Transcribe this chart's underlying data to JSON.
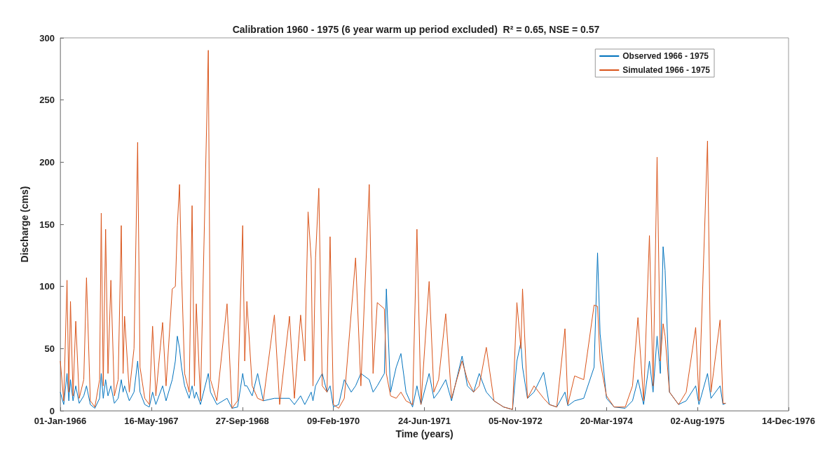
{
  "chart_data": {
    "type": "line",
    "title": "Calibration 1960 - 1975 (6 year warm up period excluded)  R² = 0.65, NSE = 0.57",
    "xlabel": "Time (years)",
    "ylabel": "Discharge (cms)",
    "x": [
      "1966-01-01",
      "1966-01-20",
      "1966-02-07",
      "1966-02-17",
      "1966-02-26",
      "1966-03-12",
      "1966-03-27",
      "1966-04-15",
      "1966-05-10",
      "1966-05-25",
      "1966-06-15",
      "1966-07-10",
      "1966-08-05",
      "1966-08-14",
      "1966-08-25",
      "1966-09-07",
      "1966-09-20",
      "1966-10-06",
      "1966-10-25",
      "1966-11-15",
      "1966-12-02",
      "1966-12-12",
      "1966-12-20",
      "1967-01-15",
      "1967-02-10",
      "1967-03-02",
      "1967-03-15",
      "1967-04-10",
      "1967-05-05",
      "1967-05-23",
      "1967-06-10",
      "1967-07-17",
      "1967-08-05",
      "1967-09-08",
      "1967-09-25",
      "1967-10-06",
      "1967-10-18",
      "1967-10-29",
      "1967-11-15",
      "1967-12-10",
      "1967-12-26",
      "1968-01-08",
      "1968-01-18",
      "1968-02-10",
      "1968-03-24",
      "1968-04-05",
      "1968-05-10",
      "1968-07-05",
      "1968-08-01",
      "1968-09-01",
      "1968-09-29",
      "1968-10-10",
      "1968-10-22",
      "1968-11-20",
      "1968-12-20",
      "1969-01-20",
      "1969-03-22",
      "1969-04-20",
      "1969-06-13",
      "1969-07-10",
      "1969-08-13",
      "1969-09-05",
      "1969-09-23",
      "1969-10-10",
      "1969-10-20",
      "1969-11-03",
      "1969-11-21",
      "1969-12-10",
      "1970-01-05",
      "1970-01-22",
      "1970-02-09",
      "1970-03-10",
      "1970-04-10",
      "1970-05-18",
      "1970-06-11",
      "1970-07-10",
      "1970-08-25",
      "1970-09-15",
      "1970-10-08",
      "1970-11-16",
      "1970-11-27",
      "1970-12-20",
      "1971-01-20",
      "1971-02-15",
      "1971-03-15",
      "1971-04-20",
      "1971-05-14",
      "1971-06-05",
      "1971-07-20",
      "1971-08-15",
      "1971-09-10",
      "1971-10-19",
      "1971-11-20",
      "1972-01-17",
      "1972-02-15",
      "1972-03-20",
      "1972-04-20",
      "1972-05-29",
      "1972-07-10",
      "1972-09-01",
      "1972-10-20",
      "1972-11-13",
      "1972-12-05",
      "1972-12-14",
      "1973-01-10",
      "1973-02-15",
      "1973-04-09",
      "1973-05-10",
      "1973-06-20",
      "1973-08-04",
      "1973-08-20",
      "1973-09-26",
      "1973-11-15",
      "1974-01-11",
      "1974-01-30",
      "1974-02-13",
      "1974-03-20",
      "1974-05-01",
      "1974-07-01",
      "1974-08-10",
      "1974-09-09",
      "1974-10-10",
      "1974-11-11",
      "1974-12-01",
      "1974-12-23",
      "1975-01-10",
      "1975-01-25",
      "1975-02-05",
      "1975-03-01",
      "1975-04-20",
      "1975-06-01",
      "1975-07-23",
      "1975-08-10",
      "1975-09-26",
      "1975-10-15",
      "1975-12-04",
      "1975-12-20",
      "1976-01-04"
    ],
    "series": [
      {
        "name": "Observed 1966 - 1975",
        "color": "#0072bd",
        "values": [
          15,
          5,
          30,
          8,
          25,
          8,
          20,
          6,
          12,
          20,
          5,
          2,
          10,
          30,
          10,
          25,
          12,
          20,
          6,
          10,
          25,
          15,
          20,
          8,
          15,
          40,
          15,
          5,
          3,
          15,
          5,
          20,
          8,
          25,
          40,
          60,
          50,
          35,
          20,
          10,
          20,
          10,
          15,
          5,
          30,
          15,
          5,
          10,
          2,
          3,
          30,
          20,
          20,
          12,
          30,
          8,
          10,
          10,
          10,
          5,
          12,
          5,
          10,
          15,
          8,
          20,
          25,
          30,
          15,
          20,
          3,
          5,
          25,
          15,
          20,
          30,
          25,
          15,
          20,
          30,
          98,
          15,
          35,
          46,
          15,
          3,
          20,
          5,
          30,
          10,
          15,
          25,
          8,
          44,
          20,
          15,
          30,
          15,
          8,
          3,
          1,
          40,
          55,
          35,
          10,
          15,
          31,
          5,
          3,
          15,
          4,
          8,
          10,
          35,
          127,
          62,
          10,
          3,
          2,
          8,
          25,
          5,
          40,
          15,
          60,
          30,
          132,
          113,
          15,
          5,
          8,
          20,
          5,
          30,
          10,
          20,
          5,
          6
        ]
      },
      {
        "name": "Simulated 1966 - 1975",
        "color": "#d95319",
        "values": [
          40,
          8,
          105,
          15,
          88,
          12,
          72,
          10,
          25,
          107,
          8,
          3,
          25,
          159,
          20,
          146,
          30,
          105,
          12,
          25,
          149,
          30,
          76,
          15,
          50,
          216,
          35,
          10,
          5,
          68,
          12,
          71,
          20,
          98,
          100,
          149,
          182,
          112,
          30,
          15,
          165,
          20,
          86,
          8,
          290,
          25,
          8,
          86,
          2,
          8,
          149,
          40,
          88,
          20,
          10,
          8,
          77,
          5,
          76,
          10,
          77,
          40,
          160,
          122,
          20,
          123,
          179,
          20,
          15,
          140,
          5,
          2,
          10,
          79,
          123,
          20,
          182,
          30,
          87,
          82,
          30,
          12,
          10,
          15,
          8,
          5,
          146,
          5,
          104,
          15,
          25,
          78,
          10,
          40,
          25,
          15,
          20,
          51,
          8,
          3,
          1,
          87,
          50,
          98,
          10,
          20,
          10,
          5,
          3,
          66,
          5,
          28,
          25,
          85,
          84,
          40,
          12,
          3,
          3,
          20,
          75,
          8,
          141,
          20,
          204,
          40,
          70,
          60,
          15,
          5,
          15,
          67,
          8,
          217,
          15,
          73,
          6,
          6
        ]
      }
    ],
    "xlim": [
      "1966-01-01",
      "1976-12-14"
    ],
    "xticks": [
      {
        "value": "1966-01-01",
        "label": "01-Jan-1966"
      },
      {
        "value": "1967-05-16",
        "label": "16-May-1967"
      },
      {
        "value": "1968-09-27",
        "label": "27-Sep-1968"
      },
      {
        "value": "1970-02-09",
        "label": "09-Feb-1970"
      },
      {
        "value": "1971-06-24",
        "label": "24-Jun-1971"
      },
      {
        "value": "1972-11-05",
        "label": "05-Nov-1972"
      },
      {
        "value": "1974-03-20",
        "label": "20-Mar-1974"
      },
      {
        "value": "1975-08-02",
        "label": "02-Aug-1975"
      },
      {
        "value": "1976-12-14",
        "label": "14-Dec-1976"
      }
    ],
    "ylim": [
      0,
      300
    ],
    "yticks": [
      0,
      50,
      100,
      150,
      200,
      250,
      300
    ],
    "legend": "top right",
    "grid": false
  }
}
